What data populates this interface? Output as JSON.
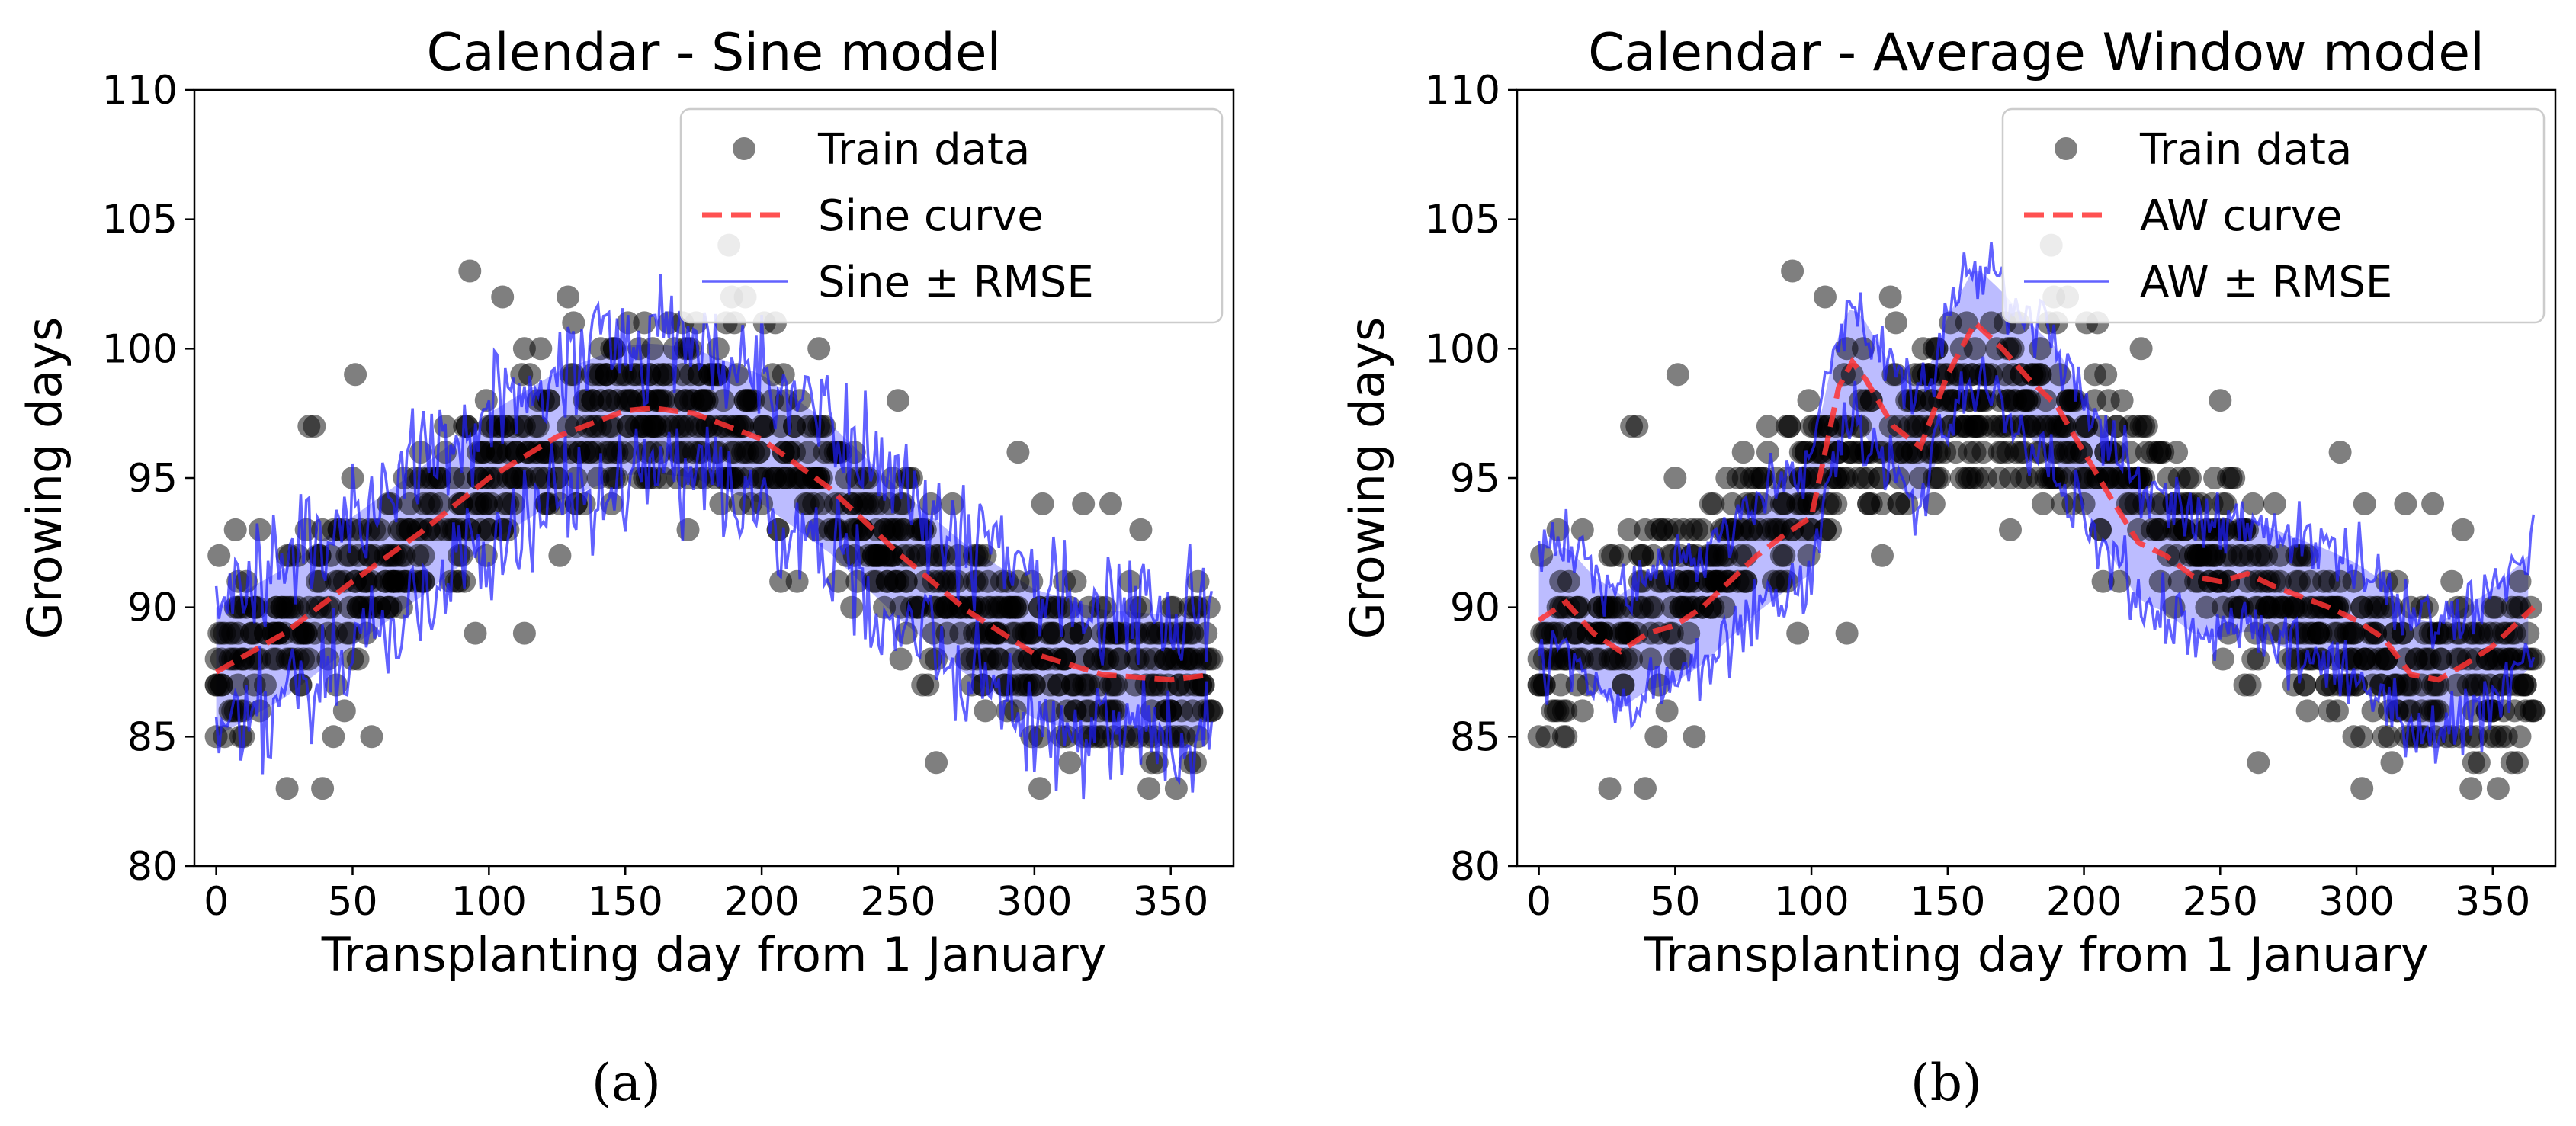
{
  "chart_data": [
    {
      "type": "scatter",
      "panel_label": "(a)",
      "title": "Calendar - Sine model",
      "xlabel": "Transplanting day from 1 January",
      "ylabel": "Growing days",
      "xlim": [
        -8,
        373
      ],
      "ylim": [
        80,
        110
      ],
      "xticks": [
        0,
        50,
        100,
        150,
        200,
        250,
        300,
        350
      ],
      "yticks": [
        80,
        85,
        90,
        95,
        100,
        105,
        110
      ],
      "legend_position": "top-right",
      "legend": [
        "Train data",
        "Sine curve",
        "Sine ± RMSE"
      ],
      "series": [
        {
          "name": "Train data",
          "kind": "scatter",
          "color": "#000000",
          "n_points_estimate": 1100,
          "note": "overlapping semi-transparent points, integer growing days, one cluster per transplanting day"
        },
        {
          "name": "Sine curve",
          "kind": "line",
          "style": "dashed",
          "color": "#ff3333",
          "x": [
            0,
            25,
            50,
            75,
            100,
            125,
            150,
            160,
            175,
            200,
            225,
            250,
            275,
            300,
            325,
            350,
            365
          ],
          "y": [
            87.5,
            89.0,
            91.0,
            92.9,
            95.0,
            96.6,
            97.6,
            97.7,
            97.5,
            96.5,
            94.6,
            92.1,
            89.9,
            88.2,
            87.4,
            87.2,
            87.4
          ]
        },
        {
          "name": "Sine ± RMSE",
          "kind": "band",
          "color": "#3333ff",
          "band_halfwidth_estimate": 2.5
        }
      ]
    },
    {
      "type": "scatter",
      "panel_label": "(b)",
      "title": "Calendar - Average Window model",
      "xlabel": "Transplanting day from 1 January",
      "ylabel": "Growing days",
      "xlim": [
        -8,
        373
      ],
      "ylim": [
        80,
        110
      ],
      "xticks": [
        0,
        50,
        100,
        150,
        200,
        250,
        300,
        350
      ],
      "yticks": [
        80,
        85,
        90,
        95,
        100,
        105,
        110
      ],
      "legend_position": "top-right",
      "legend": [
        "Train data",
        "AW curve",
        "AW ± RMSE"
      ],
      "series": [
        {
          "name": "Train data",
          "kind": "scatter",
          "color": "#000000",
          "n_points_estimate": 1100,
          "note": "same training data as panel (a)"
        },
        {
          "name": "AW curve",
          "kind": "line",
          "style": "dashed",
          "color": "#ff3333",
          "x": [
            0,
            10,
            20,
            30,
            40,
            50,
            60,
            70,
            80,
            90,
            100,
            110,
            115,
            120,
            130,
            140,
            150,
            160,
            170,
            180,
            190,
            200,
            210,
            220,
            230,
            240,
            250,
            260,
            270,
            280,
            290,
            300,
            310,
            320,
            330,
            340,
            350,
            365
          ],
          "y": [
            89.5,
            90.2,
            89.0,
            88.3,
            89.0,
            89.3,
            90.0,
            91.0,
            92.0,
            92.8,
            93.5,
            98.5,
            99.5,
            98.8,
            97.0,
            96.2,
            99.0,
            101.0,
            100.0,
            98.8,
            97.8,
            96.0,
            94.2,
            92.5,
            92.0,
            91.2,
            91.0,
            91.3,
            90.8,
            90.4,
            90.0,
            89.5,
            88.8,
            87.4,
            87.2,
            87.8,
            88.5,
            90.0
          ]
        },
        {
          "name": "AW ± RMSE",
          "kind": "band",
          "color": "#3333ff",
          "band_halfwidth_estimate": 2.2
        }
      ]
    }
  ]
}
